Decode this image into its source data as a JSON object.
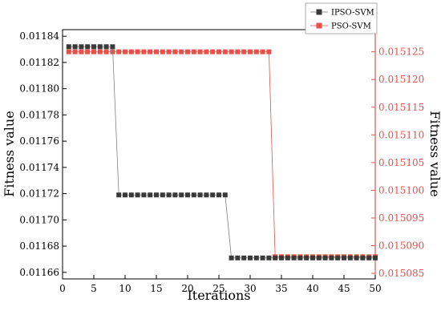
{
  "chart_data": {
    "type": "line",
    "xlabel": "Iterations",
    "ylabel_left": "Fitness value",
    "ylabel_right": "Fitness value",
    "xlim": [
      0,
      50
    ],
    "xticks": [
      0,
      5,
      10,
      15,
      20,
      25,
      30,
      35,
      40,
      45,
      50
    ],
    "ylim_left": [
      0.011655,
      0.011845
    ],
    "yticks_left": [
      "0.01166",
      "0.01168",
      "0.01170",
      "0.01172",
      "0.01174",
      "0.01176",
      "0.01178",
      "0.01180",
      "0.01182",
      "0.01184"
    ],
    "ylim_right": [
      0.015084,
      0.015129
    ],
    "yticks_right": [
      "0.015085",
      "0.015090",
      "0.015095",
      "0.015100",
      "0.015105",
      "0.015110",
      "0.015115",
      "0.015120",
      "0.015125"
    ],
    "legend_position": "top-right",
    "grid": false,
    "series": [
      {
        "name": "IPSO-SVM",
        "axis": "left",
        "color": "#3a3a3a",
        "marker": "square",
        "x": [
          1,
          2,
          3,
          4,
          5,
          6,
          7,
          8,
          9,
          10,
          11,
          12,
          13,
          14,
          15,
          16,
          17,
          18,
          19,
          20,
          21,
          22,
          23,
          24,
          25,
          26,
          27,
          28,
          29,
          30,
          31,
          32,
          33,
          34,
          35,
          36,
          37,
          38,
          39,
          40,
          41,
          42,
          43,
          44,
          45,
          46,
          47,
          48,
          49,
          50
        ],
        "y": [
          0.011832,
          0.011832,
          0.011832,
          0.011832,
          0.011832,
          0.011832,
          0.011832,
          0.011832,
          0.011719,
          0.011719,
          0.011719,
          0.011719,
          0.011719,
          0.011719,
          0.011719,
          0.011719,
          0.011719,
          0.011719,
          0.011719,
          0.011719,
          0.011719,
          0.011719,
          0.011719,
          0.011719,
          0.011719,
          0.011719,
          0.011671,
          0.011671,
          0.011671,
          0.011671,
          0.011671,
          0.011671,
          0.011671,
          0.011671,
          0.011671,
          0.011671,
          0.011671,
          0.011671,
          0.011671,
          0.011671,
          0.011671,
          0.011671,
          0.011671,
          0.011671,
          0.011671,
          0.011671,
          0.011671,
          0.011671,
          0.011671,
          0.011671
        ]
      },
      {
        "name": "PSO-SVM",
        "axis": "right",
        "color": "#e8504a",
        "marker": "square",
        "x": [
          1,
          2,
          3,
          4,
          5,
          6,
          7,
          8,
          9,
          10,
          11,
          12,
          13,
          14,
          15,
          16,
          17,
          18,
          19,
          20,
          21,
          22,
          23,
          24,
          25,
          26,
          27,
          28,
          29,
          30,
          31,
          32,
          33,
          34,
          35,
          36,
          37,
          38,
          39,
          40,
          41,
          42,
          43,
          44,
          45,
          46,
          47,
          48,
          49,
          50
        ],
        "y": [
          0.015125,
          0.015125,
          0.015125,
          0.015125,
          0.015125,
          0.015125,
          0.015125,
          0.015125,
          0.015125,
          0.015125,
          0.015125,
          0.015125,
          0.015125,
          0.015125,
          0.015125,
          0.015125,
          0.015125,
          0.015125,
          0.015125,
          0.015125,
          0.015125,
          0.015125,
          0.015125,
          0.015125,
          0.015125,
          0.015125,
          0.015125,
          0.015125,
          0.015125,
          0.015125,
          0.015125,
          0.015125,
          0.015125,
          0.015088,
          0.015088,
          0.015088,
          0.015088,
          0.015088,
          0.015088,
          0.015088,
          0.015088,
          0.015088,
          0.015088,
          0.015088,
          0.015088,
          0.015088,
          0.015088,
          0.015088,
          0.015088,
          0.015088
        ]
      }
    ]
  }
}
